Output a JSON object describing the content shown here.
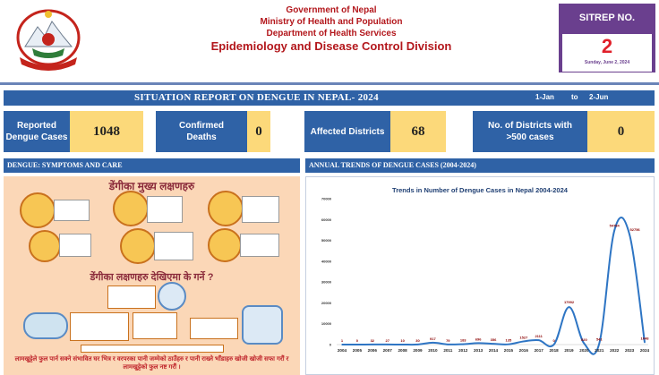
{
  "header": {
    "line1": "Government of Nepal",
    "line2": "Ministry of Health and Population",
    "line3": "Department of Health Services",
    "line4": "Epidemiology and Disease Control Division"
  },
  "sitrep": {
    "label": "SITREP NO.",
    "number": "2",
    "date": "Sunday, June 2, 2024"
  },
  "report": {
    "title": "SITUATION REPORT ON DENGUE IN NEPAL- 2024",
    "from": "1-Jan",
    "to_word": "to",
    "to": "2-Jun"
  },
  "stats": [
    {
      "label": "Reported Dengue Cases",
      "value": "1048"
    },
    {
      "label": "Confirmed Deaths",
      "value": "0"
    },
    {
      "label": "Affected Districts",
      "value": "68"
    },
    {
      "label": "No. of Districts with >500 cases",
      "value": "0"
    }
  ],
  "left_panel": {
    "header": "DENGUE: SYMPTOMS AND CARE",
    "poster_title1": "डेंगीका मुख्य लक्षणहरु",
    "poster_title2": "डेंगीका लक्षणहरु देखिएमा के गर्ने ?",
    "poster_bottom": "लामखुट्टेले फुल पार्न सक्ने संभावित घर भित्र र वरपरका पानी जम्मेको ठाउँहरु र पानी राख्ने भाँडाहरु खोजी खोजी सफा गरौं र लामखुट्टेको फुल नष्ट गरौं ।"
  },
  "chart_data": {
    "type": "line",
    "panel_header": "ANNUAL TRENDS OF DENGUE CASES (2004-2024)",
    "title": "Trends in Number of Dengue Cases in Nepal 2004-2024",
    "x": [
      "2004",
      "2005",
      "2006",
      "2007",
      "2008",
      "2009",
      "2010",
      "2011",
      "2012",
      "2013",
      "2014",
      "2015",
      "2016",
      "2017",
      "2018",
      "2019",
      "2020",
      "2021",
      "2022",
      "2023",
      "2024"
    ],
    "values": [
      1,
      0,
      32,
      27,
      10,
      30,
      917,
      79,
      183,
      696,
      356,
      135,
      1527,
      2111,
      0,
      17992,
      520,
      541,
      54784,
      52756,
      1048
    ],
    "data_labels": [
      "1",
      "0",
      "32",
      "27",
      "10",
      "30",
      "917",
      "79",
      "183",
      "696",
      "356",
      "135",
      "1527",
      "2111",
      "0",
      "17992",
      "520",
      "541",
      "54784",
      "52756",
      "1048"
    ],
    "yticks": [
      "0",
      "10000",
      "20000",
      "30000",
      "40000",
      "50000",
      "60000",
      "70000"
    ],
    "ylim": [
      0,
      70000
    ],
    "color": "#2e75c4"
  }
}
